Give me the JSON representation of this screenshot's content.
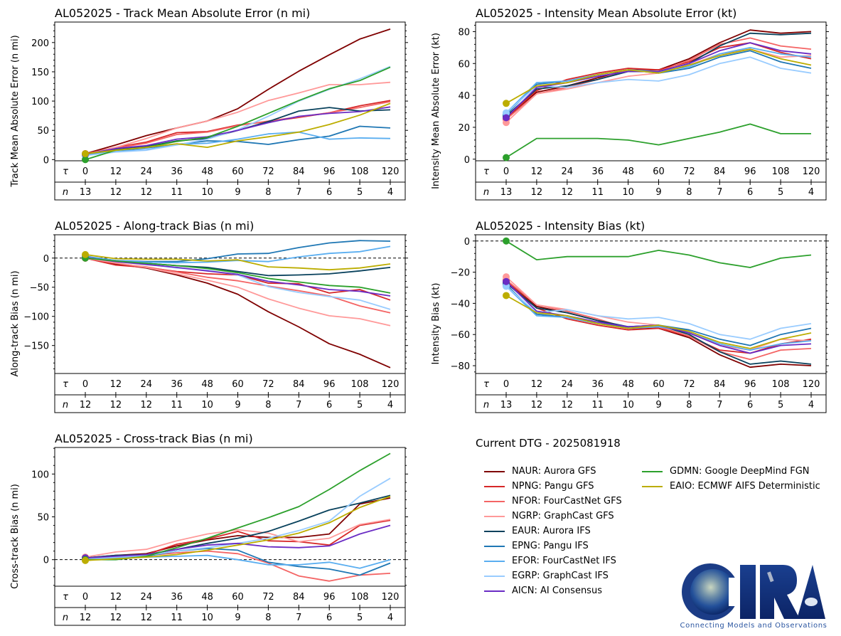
{
  "legend": {
    "title": "Current DTG - 2025081918",
    "items": [
      {
        "code": "NAUR",
        "label": "NAUR: Aurora GFS",
        "color": "#7f0000"
      },
      {
        "code": "NPNG",
        "label": "NPNG: Pangu GFS",
        "color": "#d62728"
      },
      {
        "code": "NFOR",
        "label": "NFOR: FourCastNet GFS",
        "color": "#f46464"
      },
      {
        "code": "NGRP",
        "label": "NGRP: GraphCast GFS",
        "color": "#ff9999"
      },
      {
        "code": "EAUR",
        "label": "EAUR: Aurora IFS",
        "color": "#08415c"
      },
      {
        "code": "EPNG",
        "label": "EPNG: Pangu IFS",
        "color": "#1f77b4"
      },
      {
        "code": "EFOR",
        "label": "EFOR: FourCastNet IFS",
        "color": "#5aaef0"
      },
      {
        "code": "EGRP",
        "label": "EGRP: GraphCast IFS",
        "color": "#99ccff"
      },
      {
        "code": "AICN",
        "label": "AICN: AI Consensus",
        "color": "#6a2cc4"
      },
      {
        "code": "GDMN",
        "label": "GDMN: Google DeepMind FGN",
        "color": "#2ca02c"
      },
      {
        "code": "EAIO",
        "label": "EAIO: ECMWF AIFS Deterministic",
        "color": "#bcad00"
      }
    ]
  },
  "logo": {
    "text": "CIRA",
    "tagline": "Connecting Models and Observations"
  },
  "chart_data": [
    {
      "id": "track-mae",
      "type": "line",
      "title": "AL052025 - Track Mean Absolute Error (n mi)",
      "xlabel": "",
      "ylabel": "Track Mean Absolute Error (n mi)",
      "x": [
        0,
        12,
        24,
        36,
        48,
        60,
        72,
        84,
        96,
        108,
        120
      ],
      "n": [
        13,
        12,
        12,
        11,
        10,
        9,
        8,
        7,
        6,
        5,
        4
      ],
      "tau_label": "τ",
      "n_label": "n",
      "ylim": [
        -2,
        235
      ],
      "yticks": [
        0,
        50,
        100,
        150,
        200
      ],
      "zero_line": false,
      "series": [
        {
          "name": "NAUR",
          "values": [
            10,
            25,
            41,
            54,
            66,
            87,
            120,
            151,
            179,
            206,
            223
          ]
        },
        {
          "name": "NPNG",
          "values": [
            10,
            21,
            30,
            46,
            48,
            59,
            65,
            72,
            80,
            92,
            101
          ]
        },
        {
          "name": "NFOR",
          "values": [
            9,
            20,
            28,
            43,
            47,
            58,
            66,
            73,
            80,
            89,
            99
          ]
        },
        {
          "name": "NGRP",
          "values": [
            9,
            21,
            36,
            54,
            66,
            81,
            101,
            114,
            128,
            128,
            132
          ]
        },
        {
          "name": "EAUR",
          "values": [
            8,
            17,
            22,
            32,
            36,
            50,
            65,
            83,
            89,
            83,
            85
          ]
        },
        {
          "name": "EPNG",
          "values": [
            8,
            15,
            20,
            26,
            32,
            31,
            26,
            34,
            40,
            57,
            54
          ]
        },
        {
          "name": "EFOR",
          "values": [
            7,
            14,
            17,
            26,
            28,
            35,
            44,
            47,
            35,
            37,
            36
          ]
        },
        {
          "name": "EGRP",
          "values": [
            7,
            13,
            16,
            25,
            35,
            51,
            74,
            100,
            120,
            138,
            159
          ]
        },
        {
          "name": "AICN",
          "values": [
            9,
            19,
            24,
            35,
            39,
            50,
            63,
            74,
            79,
            82,
            90
          ]
        },
        {
          "name": "GDMN",
          "values": [
            0,
            16,
            21,
            31,
            38,
            57,
            79,
            101,
            121,
            135,
            158
          ]
        },
        {
          "name": "EAIO",
          "values": [
            10,
            16,
            21,
            27,
            21,
            32,
            39,
            47,
            60,
            76,
            96
          ]
        }
      ]
    },
    {
      "id": "intensity-mae",
      "type": "line",
      "title": "AL052025 - Intensity Mean Absolute Error (kt)",
      "xlabel": "",
      "ylabel": "Intensity Mean Absolute Error (kt)",
      "x": [
        0,
        12,
        24,
        36,
        48,
        60,
        72,
        84,
        96,
        108,
        120
      ],
      "n": [
        13,
        12,
        12,
        11,
        10,
        9,
        8,
        7,
        6,
        5,
        4
      ],
      "tau_label": "τ",
      "n_label": "n",
      "ylim": [
        -1,
        86
      ],
      "yticks": [
        0,
        20,
        40,
        60,
        80
      ],
      "zero_line": false,
      "series": [
        {
          "name": "NAUR",
          "values": [
            26,
            42,
            46,
            51,
            56,
            56,
            63,
            73,
            81,
            79,
            80
          ]
        },
        {
          "name": "NPNG",
          "values": [
            26,
            43,
            50,
            54,
            57,
            56,
            61,
            70,
            73,
            67,
            63
          ]
        },
        {
          "name": "NFOR",
          "values": [
            25,
            41,
            45,
            50,
            56,
            55,
            62,
            72,
            76,
            71,
            69
          ]
        },
        {
          "name": "NGRP",
          "values": [
            23,
            41,
            44,
            48,
            52,
            54,
            59,
            66,
            69,
            64,
            65
          ]
        },
        {
          "name": "EAUR",
          "values": [
            27,
            44,
            46,
            50,
            55,
            55,
            60,
            71,
            79,
            78,
            79
          ]
        },
        {
          "name": "EPNG",
          "values": [
            28,
            47,
            49,
            53,
            56,
            54,
            57,
            64,
            68,
            61,
            57
          ]
        },
        {
          "name": "EFOR",
          "values": [
            29,
            48,
            49,
            53,
            56,
            55,
            58,
            66,
            70,
            66,
            64
          ]
        },
        {
          "name": "EGRP",
          "values": [
            29,
            46,
            45,
            48,
            50,
            49,
            53,
            60,
            64,
            57,
            54
          ]
        },
        {
          "name": "AICN",
          "values": [
            26,
            45,
            48,
            52,
            55,
            55,
            60,
            68,
            73,
            68,
            66
          ]
        },
        {
          "name": "GDMN",
          "values": [
            1,
            13,
            13,
            13,
            12,
            9,
            13,
            17,
            22,
            16,
            16
          ]
        },
        {
          "name": "EAIO",
          "values": [
            35,
            46,
            48,
            53,
            56,
            54,
            59,
            65,
            69,
            63,
            59
          ]
        }
      ]
    },
    {
      "id": "along-track-bias",
      "type": "line",
      "title": "AL052025 - Along-track Bias (n mi)",
      "xlabel": "",
      "ylabel": "Along-track Bias (n mi)",
      "x": [
        0,
        12,
        24,
        36,
        48,
        60,
        72,
        84,
        96,
        108,
        120
      ],
      "n": [
        12,
        12,
        12,
        11,
        10,
        9,
        8,
        7,
        6,
        5,
        4
      ],
      "tau_label": "τ",
      "n_label": "n",
      "ylim": [
        -198,
        40
      ],
      "yticks": [
        -150,
        -100,
        -50,
        0
      ],
      "zero_line": true,
      "series": [
        {
          "name": "NAUR",
          "values": [
            0,
            -10,
            -17,
            -29,
            -43,
            -62,
            -92,
            -118,
            -147,
            -165,
            -188
          ]
        },
        {
          "name": "NPNG",
          "values": [
            0,
            -12,
            -16,
            -23,
            -27,
            -29,
            -43,
            -44,
            -60,
            -54,
            -72
          ]
        },
        {
          "name": "NFOR",
          "values": [
            0,
            -9,
            -15,
            -24,
            -33,
            -39,
            -48,
            -56,
            -65,
            -82,
            -94
          ]
        },
        {
          "name": "NGRP",
          "values": [
            0,
            -8,
            -16,
            -27,
            -38,
            -50,
            -70,
            -86,
            -99,
            -104,
            -116
          ]
        },
        {
          "name": "EAUR",
          "values": [
            2,
            -5,
            -9,
            -13,
            -16,
            -23,
            -30,
            -29,
            -27,
            -22,
            -16
          ]
        },
        {
          "name": "EPNG",
          "values": [
            3,
            -4,
            -6,
            -6,
            -1,
            7,
            8,
            18,
            26,
            30,
            29
          ]
        },
        {
          "name": "EFOR",
          "values": [
            2,
            -4,
            -7,
            -8,
            -7,
            -4,
            -6,
            2,
            8,
            11,
            20
          ]
        },
        {
          "name": "EGRP",
          "values": [
            1,
            -6,
            -10,
            -17,
            -21,
            -29,
            -49,
            -59,
            -66,
            -72,
            -88
          ]
        },
        {
          "name": "AICN",
          "values": [
            1,
            -6,
            -11,
            -16,
            -22,
            -28,
            -40,
            -46,
            -54,
            -57,
            -65
          ]
        },
        {
          "name": "GDMN",
          "values": [
            0,
            -5,
            -9,
            -13,
            -18,
            -25,
            -35,
            -41,
            -47,
            -50,
            -60
          ]
        },
        {
          "name": "EAIO",
          "values": [
            6,
            -1,
            -2,
            -2,
            -5,
            -3,
            -15,
            -17,
            -20,
            -17,
            -10
          ]
        }
      ]
    },
    {
      "id": "intensity-bias",
      "type": "line",
      "title": "AL052025 - Intensity Bias (kt)",
      "xlabel": "",
      "ylabel": "Intensity Bias (kt)",
      "x": [
        0,
        12,
        24,
        36,
        48,
        60,
        72,
        84,
        96,
        108,
        120
      ],
      "n": [
        13,
        12,
        12,
        11,
        10,
        9,
        8,
        7,
        6,
        5,
        4
      ],
      "tau_label": "τ",
      "n_label": "n",
      "ylim": [
        -85,
        4
      ],
      "yticks": [
        -80,
        -60,
        -40,
        -20,
        0
      ],
      "zero_line": true,
      "series": [
        {
          "name": "NAUR",
          "values": [
            -26,
            -42,
            -46,
            -51,
            -56,
            -56,
            -62,
            -73,
            -81,
            -79,
            -80
          ]
        },
        {
          "name": "NPNG",
          "values": [
            -26,
            -43,
            -50,
            -54,
            -57,
            -56,
            -61,
            -70,
            -72,
            -66,
            -63
          ]
        },
        {
          "name": "NFOR",
          "values": [
            -25,
            -41,
            -45,
            -50,
            -56,
            -55,
            -61,
            -71,
            -76,
            -70,
            -69
          ]
        },
        {
          "name": "NGRP",
          "values": [
            -23,
            -41,
            -44,
            -48,
            -52,
            -54,
            -59,
            -67,
            -70,
            -63,
            -64
          ]
        },
        {
          "name": "EAUR",
          "values": [
            -27,
            -43,
            -46,
            -51,
            -55,
            -54,
            -60,
            -71,
            -79,
            -77,
            -79
          ]
        },
        {
          "name": "EPNG",
          "values": [
            -28,
            -47,
            -49,
            -53,
            -55,
            -54,
            -57,
            -63,
            -67,
            -60,
            -56
          ]
        },
        {
          "name": "EFOR",
          "values": [
            -29,
            -48,
            -49,
            -53,
            -56,
            -55,
            -58,
            -66,
            -70,
            -66,
            -64
          ]
        },
        {
          "name": "EGRP",
          "values": [
            -29,
            -46,
            -44,
            -48,
            -50,
            -49,
            -53,
            -60,
            -63,
            -56,
            -53
          ]
        },
        {
          "name": "AICN",
          "values": [
            -26,
            -45,
            -48,
            -52,
            -55,
            -54,
            -59,
            -67,
            -72,
            -67,
            -66
          ]
        },
        {
          "name": "GDMN",
          "values": [
            0,
            -12,
            -10,
            -10,
            -10,
            -6,
            -9,
            -14,
            -17,
            -11,
            -9
          ]
        },
        {
          "name": "EAIO",
          "values": [
            -35,
            -46,
            -48,
            -53,
            -56,
            -54,
            -58,
            -65,
            -69,
            -63,
            -59
          ]
        }
      ]
    },
    {
      "id": "cross-track-bias",
      "type": "line",
      "title": "AL052025 - Cross-track Bias (n mi)",
      "xlabel": "",
      "ylabel": "Cross-track Bias (n mi)",
      "x": [
        0,
        12,
        24,
        36,
        48,
        60,
        72,
        84,
        96,
        108,
        120
      ],
      "n": [
        12,
        12,
        12,
        11,
        10,
        9,
        8,
        7,
        6,
        5,
        4
      ],
      "tau_label": "τ",
      "n_label": "n",
      "ylim": [
        -31,
        131
      ],
      "yticks": [
        0,
        50,
        100
      ],
      "zero_line": true,
      "series": [
        {
          "name": "NAUR",
          "values": [
            2,
            5,
            7,
            16,
            23,
            28,
            26,
            26,
            30,
            65,
            72
          ]
        },
        {
          "name": "NPNG",
          "values": [
            2,
            4,
            6,
            18,
            24,
            33,
            22,
            21,
            17,
            40,
            46
          ]
        },
        {
          "name": "NFOR",
          "values": [
            1,
            3,
            5,
            8,
            10,
            7,
            -4,
            -19,
            -25,
            -18,
            -16
          ]
        },
        {
          "name": "NGRP",
          "values": [
            3,
            9,
            12,
            22,
            30,
            35,
            31,
            21,
            25,
            41,
            47
          ]
        },
        {
          "name": "EAUR",
          "values": [
            2,
            5,
            6,
            12,
            19,
            25,
            33,
            45,
            58,
            66,
            75
          ]
        },
        {
          "name": "EPNG",
          "values": [
            1,
            2,
            4,
            10,
            13,
            11,
            -3,
            -8,
            -11,
            -18,
            -4
          ]
        },
        {
          "name": "EFOR",
          "values": [
            1,
            2,
            3,
            4,
            5,
            0,
            -6,
            -6,
            -3,
            -10,
            0
          ]
        },
        {
          "name": "EGRP",
          "values": [
            1,
            3,
            5,
            10,
            14,
            19,
            25,
            34,
            45,
            74,
            95
          ]
        },
        {
          "name": "AICN",
          "values": [
            2,
            4,
            6,
            12,
            17,
            19,
            15,
            14,
            16,
            30,
            40
          ]
        },
        {
          "name": "GDMN",
          "values": [
            0,
            0,
            4,
            14,
            25,
            37,
            49,
            62,
            82,
            104,
            124
          ]
        },
        {
          "name": "EAIO",
          "values": [
            -1,
            1,
            3,
            6,
            11,
            17,
            23,
            31,
            43,
            61,
            74
          ]
        }
      ]
    }
  ]
}
